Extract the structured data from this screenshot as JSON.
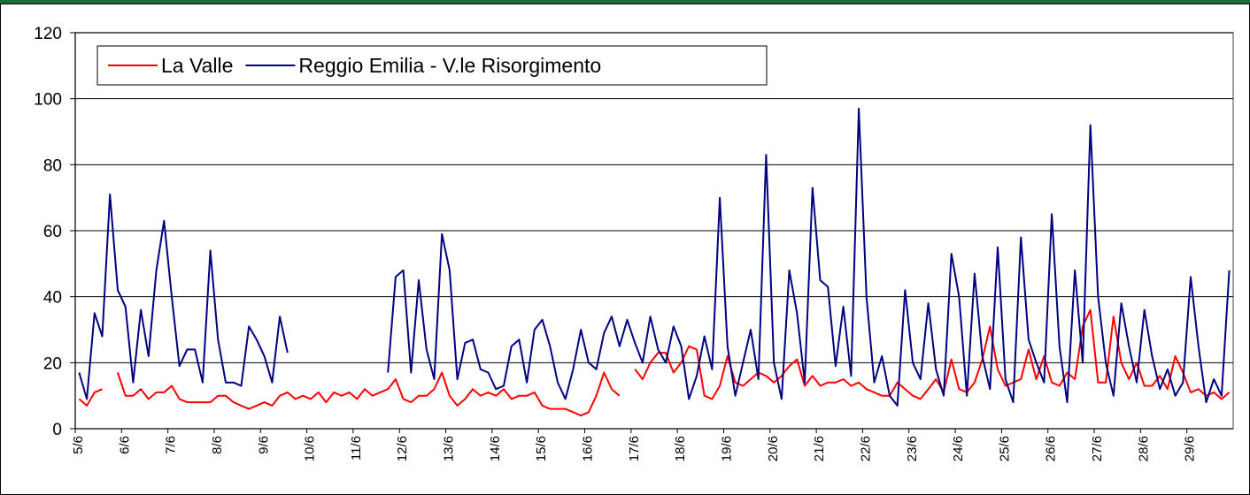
{
  "chart_data": {
    "type": "line",
    "categories": [
      "5/6",
      null,
      null,
      null,
      null,
      null,
      "6/6",
      null,
      null,
      null,
      null,
      null,
      "7/6",
      null,
      null,
      null,
      null,
      null,
      "8/6",
      null,
      null,
      null,
      null,
      null,
      "9/6",
      null,
      null,
      null,
      null,
      null,
      "10/6",
      null,
      null,
      null,
      null,
      null,
      "11/6",
      null,
      null,
      null,
      null,
      null,
      "12/6",
      null,
      null,
      null,
      null,
      null,
      "13/6",
      null,
      null,
      null,
      null,
      null,
      "14/6",
      null,
      null,
      null,
      null,
      null,
      "15/6",
      null,
      null,
      null,
      null,
      null,
      "16/6",
      null,
      null,
      null,
      null,
      null,
      "17/6",
      null,
      null,
      null,
      null,
      null,
      "18/6",
      null,
      null,
      null,
      null,
      null,
      "19/6",
      null,
      null,
      null,
      null,
      null,
      "20/6",
      null,
      null,
      null,
      null,
      null,
      "21/6",
      null,
      null,
      null,
      null,
      null,
      "22/6",
      null,
      null,
      null,
      null,
      null,
      "23/6",
      null,
      null,
      null,
      null,
      null,
      "24/6",
      null,
      null,
      null,
      null,
      null,
      "25/6",
      null,
      null,
      null,
      null,
      null,
      "26/6",
      null,
      null,
      null,
      null,
      null,
      "27/6",
      null,
      null,
      null,
      null,
      null,
      "28/6",
      null,
      null,
      null,
      null,
      null,
      "29/6",
      null,
      null,
      null,
      null,
      null
    ],
    "series": [
      {
        "name": "La Valle",
        "color": "#ff0000",
        "values": [
          9,
          7,
          11,
          12,
          null,
          17,
          10,
          10,
          12,
          9,
          11,
          11,
          13,
          9,
          8,
          8,
          8,
          8,
          10,
          10,
          8,
          7,
          6,
          7,
          8,
          7,
          10,
          11,
          9,
          10,
          9,
          11,
          8,
          11,
          10,
          11,
          9,
          12,
          10,
          11,
          12,
          15,
          9,
          8,
          10,
          10,
          12,
          17,
          10,
          7,
          9,
          12,
          10,
          11,
          10,
          12,
          9,
          10,
          10,
          11,
          7,
          6,
          6,
          6,
          5,
          4,
          5,
          10,
          17,
          12,
          10,
          null,
          18,
          15,
          20,
          23,
          23,
          17,
          20,
          25,
          24,
          10,
          9,
          13,
          22,
          14,
          13,
          15,
          17,
          16,
          14,
          16,
          19,
          21,
          13,
          16,
          13,
          14,
          14,
          15,
          13,
          14,
          12,
          11,
          10,
          10,
          14,
          12,
          10,
          9,
          12,
          15,
          11,
          21,
          12,
          11,
          14,
          21,
          31,
          18,
          13,
          14,
          15,
          24,
          15,
          22,
          14,
          13,
          17,
          15,
          31,
          36,
          14,
          14,
          34,
          20,
          15,
          20,
          13,
          13,
          16,
          12,
          22,
          17,
          11,
          12,
          10,
          11,
          9,
          11
        ]
      },
      {
        "name": "Reggio Emilia - V.le Risorgimento",
        "color": "#000080",
        "values": [
          17,
          9,
          35,
          28,
          71,
          42,
          37,
          14,
          36,
          22,
          48,
          63,
          40,
          19,
          24,
          24,
          14,
          54,
          27,
          14,
          14,
          13,
          31,
          27,
          22,
          14,
          34,
          23,
          null,
          null,
          null,
          null,
          null,
          null,
          null,
          null,
          null,
          null,
          null,
          null,
          17,
          46,
          48,
          17,
          45,
          24,
          15,
          59,
          48,
          15,
          26,
          27,
          18,
          17,
          12,
          13,
          25,
          27,
          14,
          30,
          33,
          25,
          14,
          9,
          18,
          30,
          20,
          18,
          29,
          34,
          25,
          33,
          26,
          20,
          34,
          24,
          20,
          31,
          25,
          9,
          16,
          28,
          18,
          70,
          25,
          10,
          20,
          30,
          15,
          83,
          20,
          9,
          48,
          35,
          14,
          73,
          45,
          43,
          19,
          37,
          16,
          97,
          40,
          14,
          22,
          10,
          7,
          42,
          20,
          15,
          38,
          18,
          10,
          53,
          40,
          10,
          47,
          22,
          12,
          55,
          15,
          8,
          58,
          27,
          20,
          14,
          65,
          25,
          8,
          48,
          20,
          92,
          40,
          20,
          10,
          38,
          25,
          14,
          36,
          22,
          12,
          18,
          10,
          14,
          46,
          25,
          8,
          15,
          10,
          48
        ]
      }
    ],
    "ylim": [
      0,
      120
    ],
    "yticks": [
      0,
      20,
      40,
      60,
      80,
      100,
      120
    ],
    "grid": true
  }
}
